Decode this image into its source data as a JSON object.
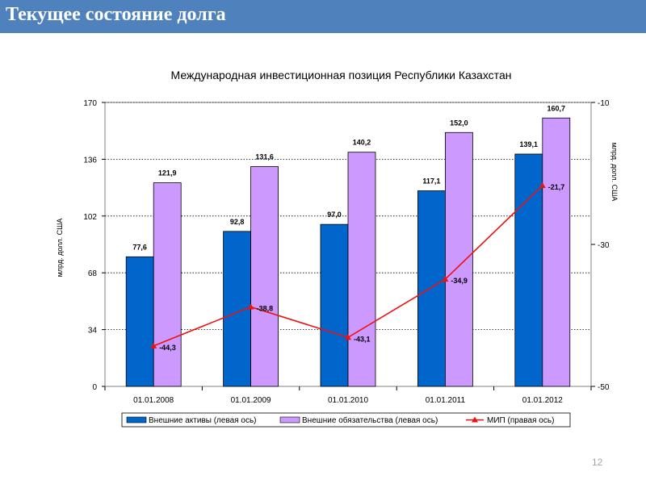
{
  "header": {
    "title": "Текущее состояние долга"
  },
  "page_number": "12",
  "chart_data": {
    "type": "bar",
    "title": "Международная инвестиционная позиция Республики Казахстан",
    "categories": [
      "01.01.2008",
      "01.01.2009",
      "01.01.2010",
      "01.01.2011",
      "01.01.2012"
    ],
    "series": [
      {
        "name": "Внешние активы (левая ось)",
        "axis": "left",
        "kind": "bar",
        "color": "#0066cc",
        "values": [
          77.6,
          92.8,
          97.0,
          117.1,
          139.1
        ],
        "labels": [
          "77,6",
          "92,8",
          "97,0",
          "117,1",
          "139,1"
        ]
      },
      {
        "name": "Внешние обязательства (левая ось)",
        "axis": "left",
        "kind": "bar",
        "color": "#cc99ff",
        "values": [
          121.9,
          131.6,
          140.2,
          152.0,
          160.7
        ],
        "labels": [
          "121,9",
          "131,6",
          "140,2",
          "152,0",
          "160,7"
        ]
      },
      {
        "name": "МИП (правая ось)",
        "axis": "right",
        "kind": "line",
        "color": "#ee1111",
        "values": [
          -44.3,
          -38.8,
          -43.1,
          -34.9,
          -21.7
        ],
        "labels": [
          "-44,3",
          "-38,8",
          "-43,1",
          "-34,9",
          "-21,7"
        ]
      }
    ],
    "left_axis": {
      "min": 0,
      "max": 170,
      "ticks": [
        0,
        34,
        68,
        102,
        136,
        170
      ],
      "label": "млрд. долл. США"
    },
    "right_axis": {
      "min": -50,
      "max": -10,
      "ticks": [
        -50,
        -30,
        -10
      ],
      "label": "млрд. долл. США"
    },
    "legend_position": "bottom"
  }
}
